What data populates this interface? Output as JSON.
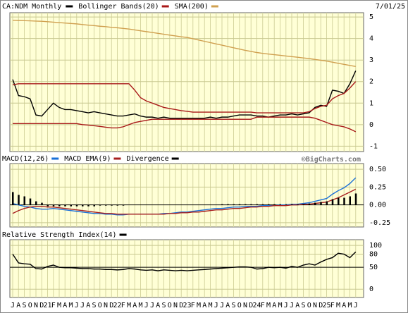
{
  "date": "7/01/25",
  "watermark": "©BigCharts.com",
  "chart_data": [
    {
      "type": "line",
      "title": "CA:NDM Monthly",
      "ylim": [
        -1.25,
        5.2
      ],
      "yticks": [
        -1,
        0,
        1,
        2,
        3,
        4,
        5
      ],
      "grid": true,
      "series": [
        {
          "color": "#000000",
          "values": [
            2.1,
            1.35,
            1.3,
            1.2,
            0.45,
            0.4,
            0.7,
            1.0,
            0.8,
            0.7,
            0.7,
            0.65,
            0.6,
            0.55,
            0.6,
            0.55,
            0.5,
            0.45,
            0.4,
            0.4,
            0.45,
            0.5,
            0.4,
            0.35,
            0.35,
            0.3,
            0.35,
            0.3,
            0.3,
            0.3,
            0.3,
            0.3,
            0.3,
            0.3,
            0.35,
            0.3,
            0.35,
            0.35,
            0.4,
            0.45,
            0.45,
            0.45,
            0.4,
            0.4,
            0.35,
            0.4,
            0.45,
            0.45,
            0.5,
            0.45,
            0.5,
            0.55,
            0.8,
            0.9,
            0.85,
            1.6,
            1.55,
            1.45,
            1.9,
            2.5
          ]
        },
        {
          "name": "Bollinger Bands(20)",
          "color": "#a81818",
          "upper": [
            1.85,
            1.9,
            1.9,
            1.9,
            1.9,
            1.9,
            1.9,
            1.9,
            1.9,
            1.9,
            1.9,
            1.9,
            1.9,
            1.9,
            1.9,
            1.9,
            1.9,
            1.9,
            1.9,
            1.9,
            1.9,
            1.6,
            1.25,
            1.1,
            1.0,
            0.9,
            0.8,
            0.75,
            0.7,
            0.65,
            0.62,
            0.58,
            0.58,
            0.58,
            0.58,
            0.58,
            0.58,
            0.58,
            0.58,
            0.58,
            0.58,
            0.58,
            0.55,
            0.55,
            0.55,
            0.55,
            0.55,
            0.55,
            0.55,
            0.55,
            0.55,
            0.6,
            0.75,
            0.85,
            0.9,
            1.2,
            1.35,
            1.45,
            1.7,
            2.0
          ],
          "lower": [
            0.05,
            0.05,
            0.05,
            0.05,
            0.05,
            0.05,
            0.05,
            0.05,
            0.05,
            0.05,
            0.05,
            0.05,
            0.0,
            -0.02,
            -0.05,
            -0.08,
            -0.12,
            -0.15,
            -0.15,
            -0.1,
            0.0,
            0.1,
            0.15,
            0.2,
            0.25,
            0.25,
            0.25,
            0.25,
            0.25,
            0.25,
            0.25,
            0.25,
            0.25,
            0.25,
            0.25,
            0.25,
            0.25,
            0.25,
            0.25,
            0.25,
            0.25,
            0.25,
            0.35,
            0.35,
            0.35,
            0.35,
            0.35,
            0.35,
            0.35,
            0.35,
            0.35,
            0.35,
            0.3,
            0.2,
            0.1,
            0.0,
            -0.05,
            -0.1,
            -0.2,
            -0.33
          ]
        },
        {
          "name": "SMA(200)",
          "color": "#d0a050",
          "values": [
            4.85,
            4.84,
            4.83,
            4.82,
            4.81,
            4.8,
            4.78,
            4.76,
            4.74,
            4.72,
            4.7,
            4.68,
            4.65,
            4.62,
            4.6,
            4.57,
            4.55,
            4.52,
            4.5,
            4.47,
            4.44,
            4.4,
            4.36,
            4.32,
            4.28,
            4.24,
            4.2,
            4.16,
            4.12,
            4.08,
            4.05,
            3.99,
            3.93,
            3.87,
            3.81,
            3.75,
            3.69,
            3.63,
            3.57,
            3.51,
            3.45,
            3.4,
            3.35,
            3.31,
            3.28,
            3.25,
            3.22,
            3.19,
            3.16,
            3.13,
            3.1,
            3.07,
            3.03,
            2.99,
            2.95,
            2.9,
            2.85,
            2.8,
            2.75,
            2.7
          ]
        }
      ]
    },
    {
      "type": "line",
      "ylim": [
        -0.31,
        0.58
      ],
      "yticks": [
        {
          "value": 0.5,
          "label": "0.50"
        },
        {
          "value": 0.25,
          "label": "0.25"
        },
        {
          "value": 0,
          "label": "0.00"
        },
        {
          "value": -0.25,
          "label": "-0.25"
        }
      ],
      "grid": true,
      "series": [
        {
          "name": "MACD(12,26)",
          "color": "#1a70d8",
          "values": [
            0.02,
            0.0,
            -0.02,
            -0.03,
            -0.05,
            -0.06,
            -0.06,
            -0.05,
            -0.06,
            -0.07,
            -0.08,
            -0.09,
            -0.1,
            -0.11,
            -0.12,
            -0.12,
            -0.13,
            -0.13,
            -0.14,
            -0.14,
            -0.13,
            -0.13,
            -0.13,
            -0.13,
            -0.13,
            -0.13,
            -0.12,
            -0.12,
            -0.11,
            -0.1,
            -0.1,
            -0.09,
            -0.08,
            -0.07,
            -0.06,
            -0.05,
            -0.05,
            -0.04,
            -0.03,
            -0.03,
            -0.02,
            -0.02,
            -0.02,
            -0.01,
            -0.01,
            -0.01,
            0.0,
            0.0,
            0.01,
            0.01,
            0.02,
            0.03,
            0.05,
            0.07,
            0.09,
            0.15,
            0.2,
            0.24,
            0.3,
            0.38
          ]
        },
        {
          "name": "MACD EMA(9)",
          "color": "#a82020",
          "values": [
            -0.12,
            -0.08,
            -0.05,
            -0.03,
            -0.02,
            -0.02,
            -0.03,
            -0.03,
            -0.04,
            -0.05,
            -0.06,
            -0.07,
            -0.08,
            -0.09,
            -0.1,
            -0.11,
            -0.12,
            -0.12,
            -0.13,
            -0.13,
            -0.13,
            -0.13,
            -0.13,
            -0.13,
            -0.13,
            -0.13,
            -0.13,
            -0.12,
            -0.12,
            -0.11,
            -0.11,
            -0.1,
            -0.1,
            -0.09,
            -0.08,
            -0.07,
            -0.07,
            -0.06,
            -0.05,
            -0.05,
            -0.04,
            -0.03,
            -0.03,
            -0.02,
            -0.02,
            -0.01,
            -0.01,
            -0.01,
            0.0,
            0.0,
            0.01,
            0.01,
            0.02,
            0.03,
            0.04,
            0.07,
            0.1,
            0.14,
            0.18,
            0.22
          ]
        },
        {
          "name": "Divergence",
          "type": "bar",
          "color": "#000000",
          "values": [
            0.18,
            0.14,
            0.12,
            0.09,
            0.05,
            0.03,
            -0.02,
            -0.02,
            -0.02,
            -0.02,
            -0.02,
            -0.02,
            -0.02,
            -0.02,
            -0.02,
            -0.01,
            -0.01,
            -0.01,
            -0.01,
            -0.01,
            0.0,
            0.0,
            0.0,
            0.0,
            0.0,
            0.0,
            0.0,
            0.0,
            0.0,
            0.0,
            0.0,
            0.0,
            0.0,
            0.0,
            0.0,
            0.0,
            0.01,
            0.01,
            0.01,
            0.01,
            0.01,
            0.01,
            0.01,
            0.01,
            0.01,
            0.01,
            0.01,
            0.01,
            0.01,
            0.01,
            0.01,
            0.02,
            0.03,
            0.04,
            0.05,
            0.08,
            0.1,
            0.1,
            0.12,
            0.16
          ]
        }
      ]
    },
    {
      "type": "line",
      "ylim": [
        -19,
        113
      ],
      "yticks": [
        100,
        80,
        50,
        0
      ],
      "grid": true,
      "categories": [
        "J",
        "A",
        "S",
        "O",
        "N",
        "D",
        "21",
        "F",
        "M",
        "A",
        "M",
        "J",
        "J",
        "A",
        "S",
        "O",
        "N",
        "D",
        "22",
        "F",
        "M",
        "A",
        "M",
        "J",
        "J",
        "A",
        "S",
        "O",
        "N",
        "D",
        "23",
        "F",
        "M",
        "A",
        "M",
        "J",
        "J",
        "A",
        "S",
        "O",
        "N",
        "D",
        "24",
        "F",
        "M",
        "A",
        "M",
        "J",
        "J",
        "A",
        "S",
        "O",
        "N",
        "D",
        "25",
        "F",
        "M",
        "A",
        "M",
        "J"
      ],
      "series": [
        {
          "name": "Relative Strength Index(14)",
          "color": "#000000",
          "values": [
            80,
            60,
            58,
            57,
            47,
            46,
            52,
            55,
            50,
            49,
            49,
            48,
            47,
            47,
            46,
            46,
            45,
            45,
            44,
            45,
            47,
            46,
            44,
            43,
            44,
            42,
            44,
            43,
            42,
            43,
            42,
            43,
            44,
            45,
            46,
            47,
            48,
            49,
            50,
            51,
            51,
            50,
            46,
            47,
            50,
            49,
            50,
            48,
            52,
            50,
            55,
            58,
            55,
            62,
            68,
            72,
            82,
            80,
            72,
            85
          ]
        }
      ]
    }
  ]
}
